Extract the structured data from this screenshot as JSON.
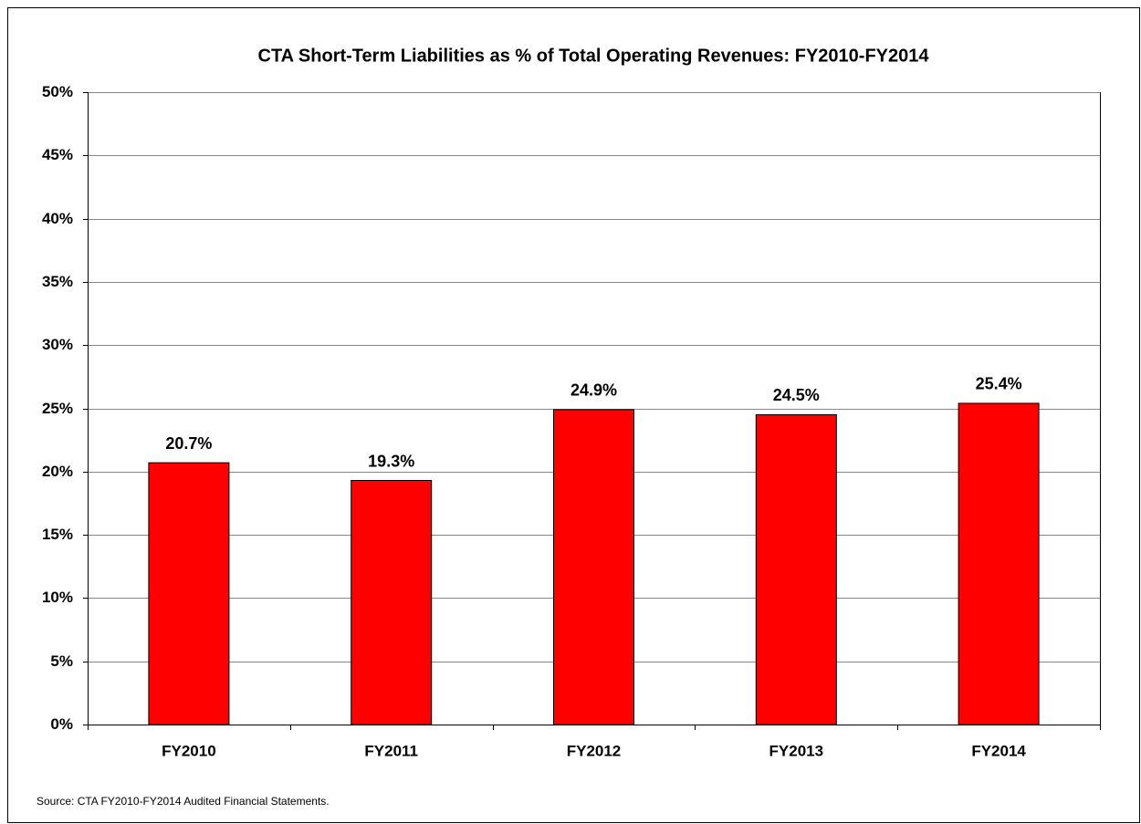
{
  "chart_data": {
    "type": "bar",
    "title": "CTA Short-Term Liabilities as % of Total Operating Revenues: FY2010-FY2014",
    "categories": [
      "FY2010",
      "FY2011",
      "FY2012",
      "FY2013",
      "FY2014"
    ],
    "values": [
      20.7,
      19.3,
      24.9,
      24.5,
      25.4
    ],
    "value_labels": [
      "20.7%",
      "19.3%",
      "24.9%",
      "24.5%",
      "25.4%"
    ],
    "color": "#ff0000",
    "ylim": [
      0,
      50
    ],
    "yticks": [
      {
        "value": 0,
        "label": "0%"
      },
      {
        "value": 5,
        "label": "5%"
      },
      {
        "value": 10,
        "label": "10%"
      },
      {
        "value": 15,
        "label": "15%"
      },
      {
        "value": 20,
        "label": "20%"
      },
      {
        "value": 25,
        "label": "25%"
      },
      {
        "value": 30,
        "label": "30%"
      },
      {
        "value": 35,
        "label": "35%"
      },
      {
        "value": 40,
        "label": "40%"
      },
      {
        "value": 45,
        "label": "45%"
      },
      {
        "value": 50,
        "label": "50%"
      }
    ],
    "grid": true,
    "source": "Source: CTA FY2010-FY2014 Audited Financial Statements."
  }
}
